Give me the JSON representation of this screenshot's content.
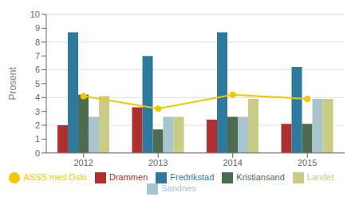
{
  "chart_data": {
    "type": "bar",
    "categories": [
      "2012",
      "2013",
      "2014",
      "2015"
    ],
    "series": [
      {
        "name": "Drammen",
        "color": "#b03030",
        "values": [
          2.0,
          3.3,
          2.4,
          2.1
        ]
      },
      {
        "name": "Fredrikstad",
        "color": "#2e7a9e",
        "values": [
          8.7,
          7.0,
          8.7,
          6.2
        ]
      },
      {
        "name": "Kristiansand",
        "color": "#4d6b50",
        "values": [
          4.2,
          1.7,
          2.6,
          2.1
        ]
      },
      {
        "name": "Sandnes",
        "color": "#a8c4cc",
        "values": [
          2.6,
          2.6,
          2.6,
          3.9
        ]
      },
      {
        "name": "Landet",
        "color": "#c8cc85",
        "values": [
          4.1,
          2.6,
          3.9,
          3.9
        ]
      },
      {
        "name": "ASSS med Oslo",
        "type": "line",
        "color": "#f0c800",
        "marker": "circle",
        "values": [
          4.1,
          3.2,
          4.2,
          3.9
        ]
      }
    ],
    "ylabel": "Prosent",
    "ylim": [
      0,
      10
    ],
    "yticks": [
      0,
      1,
      2,
      3,
      4,
      5,
      6,
      7,
      8,
      9,
      10
    ],
    "grid": true,
    "legend": "bottom"
  }
}
